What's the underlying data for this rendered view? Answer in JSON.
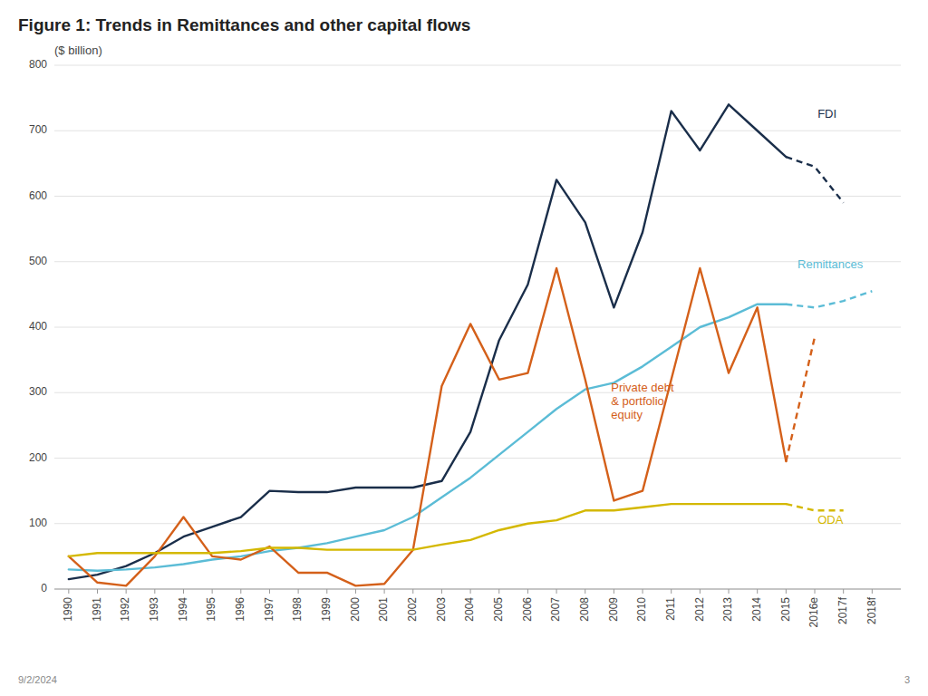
{
  "chart_data": {
    "type": "line",
    "title": "Figure 1: Trends in Remittances and other capital flows",
    "ylabel": "($ billion)",
    "footer_left": "9/2/2024",
    "footer_right": "3",
    "x": [
      1990,
      1991,
      1992,
      1993,
      1994,
      1995,
      1996,
      1997,
      1998,
      1999,
      2000,
      2001,
      2002,
      2003,
      2004,
      2005,
      2006,
      2007,
      2008,
      2009,
      2010,
      2011,
      2012,
      2013,
      2014,
      2015,
      2016,
      2017,
      2018
    ],
    "xlim": [
      1989.5,
      2019
    ],
    "xticks": [
      1990,
      1991,
      1992,
      1993,
      1994,
      1995,
      1996,
      1997,
      1998,
      1999,
      2000,
      2001,
      2002,
      2003,
      2004,
      2005,
      2006,
      2007,
      2008,
      2009,
      2010,
      2011,
      2012,
      2013,
      2014,
      2015,
      {
        "value": 2016,
        "label": "2016e"
      },
      {
        "value": 2017,
        "label": "2017f"
      },
      {
        "value": 2018,
        "label": "2018f"
      }
    ],
    "ylim": [
      0,
      800
    ],
    "yticks": [
      0,
      100,
      200,
      300,
      400,
      500,
      600,
      700,
      800
    ],
    "grid": true,
    "series": [
      {
        "color": "#1a2e4a",
        "line_style": "solid",
        "values": [
          15,
          22,
          35,
          55,
          80,
          95,
          110,
          150,
          148,
          148,
          155,
          155,
          155,
          165,
          240,
          380,
          465,
          625,
          560,
          430,
          545,
          730,
          670,
          740,
          700,
          660,
          null,
          null,
          null
        ]
      },
      {
        "color": "#1a2e4a",
        "line_style": "dashed",
        "values": [
          null,
          null,
          null,
          null,
          null,
          null,
          null,
          null,
          null,
          null,
          null,
          null,
          null,
          null,
          null,
          null,
          null,
          null,
          null,
          null,
          null,
          null,
          null,
          null,
          null,
          660,
          645,
          590,
          null
        ]
      },
      {
        "color": "#5bbcd6",
        "line_style": "solid",
        "values": [
          30,
          28,
          30,
          33,
          38,
          45,
          50,
          58,
          63,
          70,
          80,
          90,
          110,
          140,
          170,
          205,
          240,
          275,
          305,
          315,
          340,
          370,
          400,
          415,
          435,
          435,
          null,
          null,
          null
        ]
      },
      {
        "color": "#5bbcd6",
        "line_style": "dashed",
        "values": [
          null,
          null,
          null,
          null,
          null,
          null,
          null,
          null,
          null,
          null,
          null,
          null,
          null,
          null,
          null,
          null,
          null,
          null,
          null,
          null,
          null,
          null,
          null,
          null,
          null,
          435,
          430,
          440,
          455
        ]
      },
      {
        "color": "#d4601a",
        "line_style": "solid",
        "values": [
          50,
          10,
          5,
          50,
          110,
          50,
          45,
          65,
          25,
          25,
          5,
          8,
          60,
          310,
          405,
          320,
          330,
          490,
          320,
          135,
          150,
          320,
          490,
          330,
          430,
          195,
          null,
          null,
          null
        ]
      },
      {
        "color": "#d4601a",
        "line_style": "dashed",
        "values": [
          null,
          null,
          null,
          null,
          null,
          null,
          null,
          null,
          null,
          null,
          null,
          null,
          null,
          null,
          null,
          null,
          null,
          null,
          null,
          null,
          null,
          null,
          null,
          null,
          null,
          195,
          385,
          null,
          null
        ]
      },
      {
        "color": "#d4b800",
        "line_style": "solid",
        "values": [
          50,
          55,
          55,
          55,
          55,
          55,
          58,
          63,
          63,
          60,
          60,
          60,
          60,
          68,
          75,
          90,
          100,
          105,
          120,
          120,
          125,
          130,
          130,
          130,
          130,
          130,
          null,
          null,
          null
        ]
      },
      {
        "color": "#d4b800",
        "line_style": "dashed",
        "values": [
          null,
          null,
          null,
          null,
          null,
          null,
          null,
          null,
          null,
          null,
          null,
          null,
          null,
          null,
          null,
          null,
          null,
          null,
          null,
          null,
          null,
          null,
          null,
          null,
          null,
          130,
          120,
          120,
          null
        ]
      }
    ],
    "annotations": [
      {
        "text": "FDI",
        "x": 2016.1,
        "y": 720,
        "color": "#1a2e4a"
      },
      {
        "text": "Remittances",
        "x": 2015.4,
        "y": 490,
        "color": "#5bbcd6"
      },
      {
        "text": "Private debt\n& portfolio\nequity",
        "x": 2008.9,
        "y": 260,
        "color": "#d4601a"
      },
      {
        "text": "ODA",
        "x": 2016.1,
        "y": 100,
        "color": "#d4b800"
      }
    ]
  }
}
